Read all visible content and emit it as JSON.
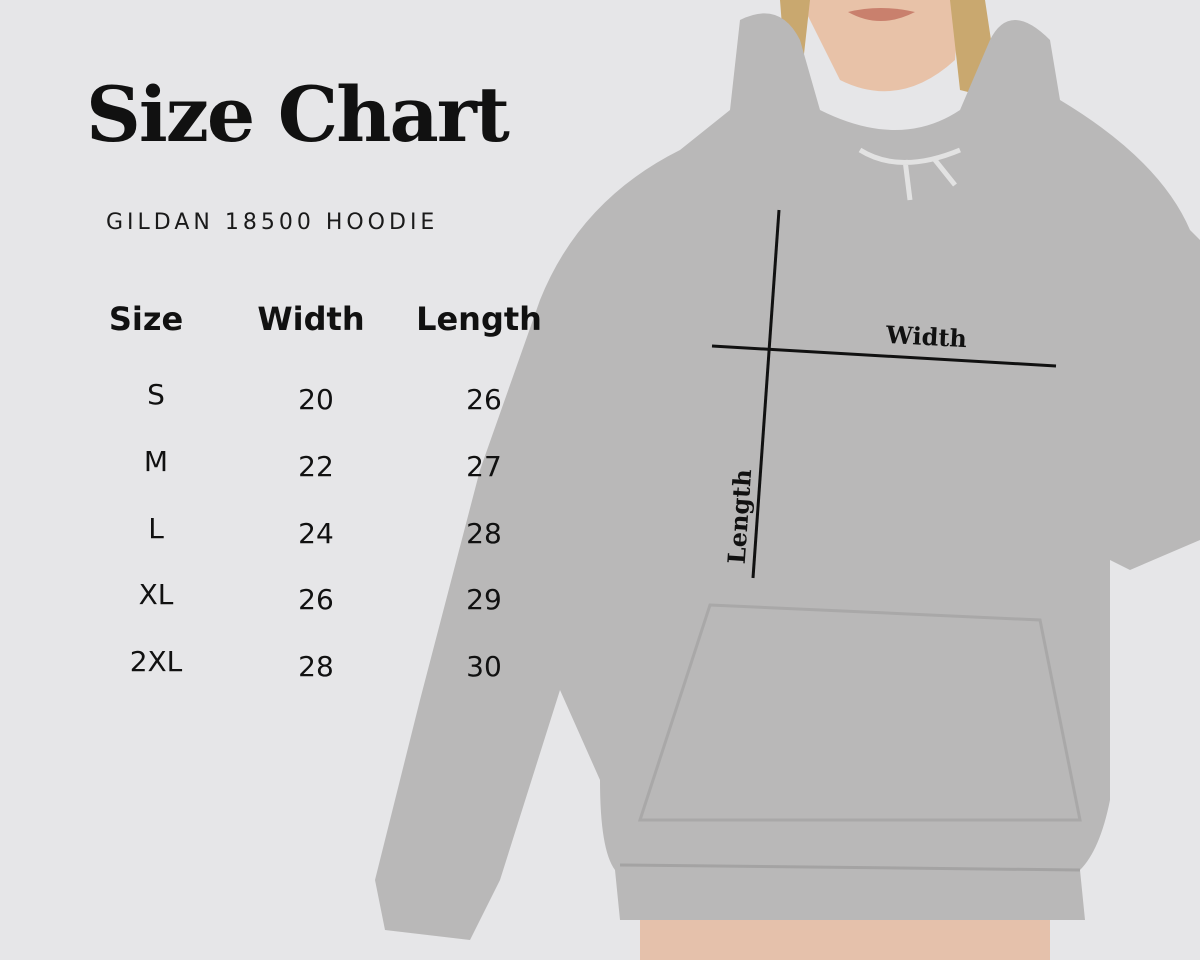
{
  "title": "Size Chart",
  "subtitle": "GILDAN 18500 HOODIE",
  "table": {
    "headers": [
      "Size",
      "Width",
      "Length"
    ],
    "rows": [
      {
        "size": "S",
        "width": "20",
        "length": "26"
      },
      {
        "size": "M",
        "width": "22",
        "length": "27"
      },
      {
        "size": "L",
        "width": "24",
        "length": "28"
      },
      {
        "size": "XL",
        "width": "26",
        "length": "29"
      },
      {
        "size": "2XL",
        "width": "28",
        "length": "30"
      }
    ]
  },
  "diagram": {
    "width_label": "Width",
    "length_label": "Length"
  },
  "colors": {
    "background": "#e6e6e8",
    "hoodie": "#b9b8b8",
    "text": "#111111"
  }
}
